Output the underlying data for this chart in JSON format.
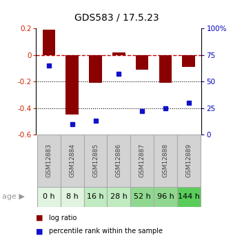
{
  "title": "GDS583 / 17.5.23",
  "samples": [
    "GSM12883",
    "GSM12884",
    "GSM12885",
    "GSM12886",
    "GSM12887",
    "GSM12888",
    "GSM12889"
  ],
  "ages": [
    "0 h",
    "8 h",
    "16 h",
    "28 h",
    "52 h",
    "96 h",
    "144 h"
  ],
  "log_ratio": [
    0.19,
    -0.45,
    -0.21,
    0.02,
    -0.11,
    -0.21,
    -0.09
  ],
  "percentile": [
    65,
    10,
    13,
    57,
    22,
    25,
    30
  ],
  "bar_color": "#8B0000",
  "dot_color": "#1111CC",
  "ylim": [
    -0.6,
    0.2
  ],
  "yticks_left": [
    -0.6,
    -0.4,
    -0.2,
    0.0,
    0.2
  ],
  "yticks_right_vals": [
    0,
    25,
    50,
    75,
    100
  ],
  "age_colors": [
    "#e0f4e0",
    "#e0f4e0",
    "#c0eac0",
    "#c0eac0",
    "#90d890",
    "#90d890",
    "#5acc5a"
  ],
  "sample_box_color": "#d3d3d3",
  "sample_label_color": "#444444",
  "legend_log_color": "#8B0000",
  "legend_dot_color": "#1111CC",
  "title_fontsize": 10,
  "tick_fontsize": 7.5,
  "sample_fontsize": 6.5,
  "age_fontsize": 8
}
